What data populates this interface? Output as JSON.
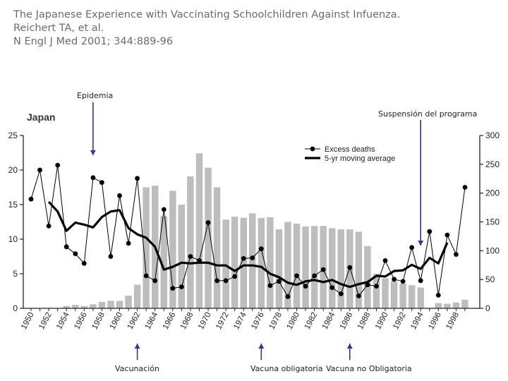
{
  "header": {
    "line1": "The Japanese Experience with Vaccinating Schoolchildren Against Infuenza.",
    "line2": "Reichert TA, et al.",
    "line3": "N Engl J Med 2001; 344:889-96"
  },
  "annotations": {
    "epidemia": "Epidemia",
    "suspension": "Suspensión del programa",
    "vacunacion": "Vacunación",
    "vacuna_obligatoria": "Vacuna obligatoria",
    "vacuna_no_obligatoria": "Vacuna no Obligatoria"
  },
  "colors": {
    "bars": "#bdbdbd",
    "line": "#000000",
    "arrow": "#2d3a8c",
    "header_text": "#6b6b6b"
  },
  "chart_data": {
    "type": "bar",
    "title": "Japan",
    "legend_placement": "top-right",
    "legend": [
      "Excess deaths",
      "5-yr moving average"
    ],
    "x_range": [
      1949,
      1999
    ],
    "x_ticks": [
      "1950",
      "1952",
      "1954",
      "1956",
      "1958",
      "1960",
      "1962",
      "1964",
      "1966",
      "1968",
      "1970",
      "1972",
      "1974",
      "1976",
      "1978",
      "1980",
      "1982",
      "1984",
      "1986",
      "1988",
      "1990",
      "1992",
      "1994",
      "1996",
      "1998"
    ],
    "left_axis": {
      "range": [
        0,
        25
      ],
      "ticks": [
        0,
        5,
        10,
        15,
        20,
        25
      ]
    },
    "right_axis": {
      "range": [
        0,
        300
      ],
      "ticks": [
        0,
        50,
        100,
        150,
        200,
        250,
        300
      ]
    },
    "series": [
      {
        "name": "vaccination",
        "kind": "bar",
        "axis": "right",
        "x": [
          1954,
          1955,
          1956,
          1957,
          1958,
          1959,
          1960,
          1961,
          1962,
          1963,
          1964,
          1965,
          1966,
          1967,
          1968,
          1969,
          1970,
          1971,
          1972,
          1973,
          1974,
          1975,
          1976,
          1977,
          1978,
          1979,
          1980,
          1981,
          1982,
          1983,
          1984,
          1985,
          1986,
          1987,
          1988,
          1989,
          1990,
          1991,
          1992,
          1993,
          1994,
          1995,
          1996,
          1997,
          1998,
          1999
        ],
        "values": [
          4,
          6,
          4,
          7,
          11,
          13,
          13,
          22,
          41,
          210,
          213,
          160,
          204,
          180,
          229,
          269,
          244,
          210,
          154,
          159,
          157,
          165,
          157,
          158,
          137,
          150,
          147,
          142,
          143,
          143,
          139,
          137,
          137,
          133,
          108,
          60,
          52,
          47,
          43,
          40,
          36,
          0,
          9,
          8,
          10,
          15
        ]
      },
      {
        "name": "Excess deaths",
        "kind": "line-markers",
        "axis": "left",
        "x": [
          1950,
          1951,
          1952,
          1953,
          1954,
          1955,
          1956,
          1957,
          1958,
          1959,
          1960,
          1961,
          1962,
          1963,
          1964,
          1965,
          1966,
          1967,
          1968,
          1969,
          1970,
          1971,
          1972,
          1973,
          1974,
          1975,
          1976,
          1977,
          1978,
          1979,
          1980,
          1981,
          1982,
          1983,
          1984,
          1985,
          1986,
          1987,
          1988,
          1989,
          1990,
          1991,
          1992,
          1993,
          1994,
          1995,
          1996,
          1997,
          1998,
          1999
        ],
        "values": [
          15.8,
          20.0,
          11.9,
          20.7,
          8.9,
          7.9,
          6.5,
          18.9,
          18.2,
          7.5,
          16.3,
          9.4,
          18.8,
          4.7,
          4.0,
          14.3,
          2.9,
          3.1,
          7.5,
          6.9,
          12.4,
          4.0,
          4.0,
          4.6,
          7.2,
          7.3,
          8.6,
          3.3,
          3.9,
          1.7,
          4.7,
          3.2,
          4.7,
          5.6,
          3.0,
          2.1,
          5.9,
          1.8,
          3.4,
          3.2,
          6.9,
          4.2,
          3.9,
          8.8,
          4.0,
          11.1,
          1.9,
          10.6,
          7.8,
          17.5
        ]
      },
      {
        "name": "5-yr moving average",
        "kind": "line",
        "axis": "left",
        "x": [
          1952,
          1953,
          1954,
          1955,
          1956,
          1957,
          1958,
          1959,
          1960,
          1961,
          1962,
          1963,
          1964,
          1965,
          1966,
          1967,
          1968,
          1969,
          1970,
          1971,
          1972,
          1973,
          1974,
          1975,
          1976,
          1977,
          1978,
          1979,
          1980,
          1981,
          1982,
          1983,
          1984,
          1985,
          1986,
          1987,
          1988,
          1989,
          1990,
          1991,
          1992,
          1993,
          1994,
          1995,
          1996,
          1997
        ],
        "values": [
          15.4,
          14.0,
          11.2,
          12.4,
          12.1,
          11.7,
          13.2,
          14.0,
          14.2,
          11.6,
          10.7,
          10.2,
          8.9,
          5.6,
          6.0,
          6.6,
          6.5,
          6.6,
          6.6,
          6.2,
          6.2,
          5.4,
          6.2,
          6.2,
          6.0,
          5.0,
          4.5,
          3.7,
          3.4,
          3.9,
          4.1,
          3.8,
          4.1,
          3.5,
          3.1,
          3.5,
          3.8,
          4.7,
          4.6,
          5.4,
          5.5,
          6.3,
          5.7,
          7.3,
          6.5,
          9.5
        ]
      }
    ],
    "events": [
      {
        "label_key": "epidemia",
        "year": 1957,
        "direction": "down"
      },
      {
        "label_key": "suspension",
        "year": 1994,
        "direction": "down"
      },
      {
        "label_key": "vacunacion",
        "year": 1962,
        "direction": "up"
      },
      {
        "label_key": "vacuna_obligatoria",
        "year": 1976,
        "direction": "up"
      },
      {
        "label_key": "vacuna_no_obligatoria",
        "year": 1986,
        "direction": "up"
      }
    ]
  }
}
